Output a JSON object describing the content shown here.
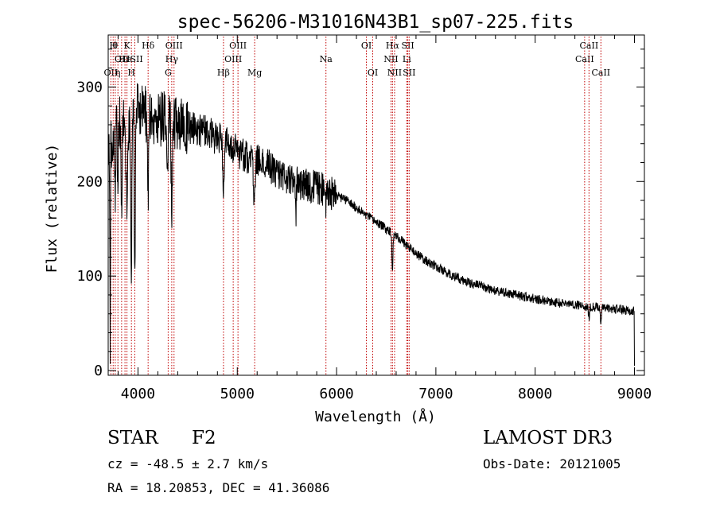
{
  "chart_data": {
    "type": "line",
    "title": "spec-56206-M31016N43B1_sp07-225.fits",
    "xlabel": "Wavelength (Å)",
    "ylabel": "Flux (relative)",
    "xlim": [
      3700,
      9100
    ],
    "ylim": [
      -5,
      355
    ],
    "x_ticks": [
      4000,
      5000,
      6000,
      7000,
      8000,
      9000
    ],
    "y_ticks": [
      0,
      100,
      200,
      300
    ],
    "grid": false,
    "continuum": {
      "x": [
        3700,
        3750,
        3800,
        3850,
        3900,
        3950,
        4000,
        4050,
        4100,
        4150,
        4200,
        4300,
        4400,
        4500,
        4600,
        4700,
        4800,
        4900,
        5000,
        5100,
        5200,
        5300,
        5400,
        5500,
        5600,
        5700,
        5800,
        5900,
        6000,
        6100,
        6200,
        6300,
        6400,
        6500,
        6600,
        6700,
        6800,
        6900,
        7000,
        7100,
        7200,
        7300,
        7400,
        7500,
        7600,
        7700,
        7800,
        7900,
        8000,
        8100,
        8200,
        8300,
        8400,
        8500,
        8600,
        8700,
        8800,
        8900,
        9000
      ],
      "y": [
        230,
        250,
        262,
        262,
        248,
        268,
        280,
        278,
        270,
        262,
        265,
        268,
        262,
        258,
        254,
        252,
        245,
        242,
        232,
        226,
        222,
        218,
        210,
        205,
        200,
        196,
        194,
        190,
        185,
        180,
        172,
        164,
        157,
        150,
        143,
        133,
        124,
        116,
        110,
        104,
        99,
        94,
        91,
        88,
        84,
        82,
        80,
        78,
        76,
        74,
        72,
        71,
        70,
        68,
        67,
        66,
        65,
        64,
        63
      ]
    },
    "absorption_features": [
      {
        "x": 3720,
        "depth": 230,
        "width": 4
      },
      {
        "x": 3770,
        "depth": 60,
        "width": 6
      },
      {
        "x": 3797,
        "depth": 70,
        "width": 6
      },
      {
        "x": 3835,
        "depth": 80,
        "width": 8
      },
      {
        "x": 3889,
        "depth": 110,
        "width": 9
      },
      {
        "x": 3933,
        "depth": 170,
        "width": 7
      },
      {
        "x": 3968,
        "depth": 190,
        "width": 8
      },
      {
        "x": 4101,
        "depth": 90,
        "width": 9
      },
      {
        "x": 4300,
        "depth": 60,
        "width": 9
      },
      {
        "x": 4340,
        "depth": 90,
        "width": 9
      },
      {
        "x": 4861,
        "depth": 55,
        "width": 12
      },
      {
        "x": 5172,
        "depth": 40,
        "width": 12
      },
      {
        "x": 5590,
        "depth": 40,
        "width": 6
      },
      {
        "x": 5893,
        "depth": 12,
        "width": 10
      },
      {
        "x": 6563,
        "depth": 40,
        "width": 7
      },
      {
        "x": 8542,
        "depth": 12,
        "width": 8
      },
      {
        "x": 8662,
        "depth": 14,
        "width": 8
      }
    ],
    "noise": {
      "blue_amplitude": 30,
      "green_amplitude": 18,
      "red_amplitude": 5,
      "terminal_drop_to": 5
    },
    "line_markers": [
      {
        "x": 3727,
        "label": "OII",
        "row": 3
      },
      {
        "x": 3750,
        "label": "H",
        "row": 1
      },
      {
        "x": 3771,
        "label": "θ",
        "row": 1
      },
      {
        "x": 3798,
        "label": "η",
        "row": 3
      },
      {
        "x": 3835,
        "label": "OII",
        "row": 2
      },
      {
        "x": 3869,
        "label": "He",
        "row": 2
      },
      {
        "x": 3889,
        "label": "K",
        "row": 1
      },
      {
        "x": 3934,
        "label": "H",
        "row": 3
      },
      {
        "x": 3968,
        "label": "ISII",
        "row": 2
      },
      {
        "x": 4102,
        "label": "Hδ",
        "row": 1
      },
      {
        "x": 4304,
        "label": "G",
        "row": 3
      },
      {
        "x": 4340,
        "label": "Hγ",
        "row": 2
      },
      {
        "x": 4363,
        "label": "OIII",
        "row": 1
      },
      {
        "x": 4861,
        "label": "Hβ",
        "row": 3
      },
      {
        "x": 4959,
        "label": "OIII",
        "row": 2
      },
      {
        "x": 5007,
        "label": "OIII",
        "row": 1
      },
      {
        "x": 5175,
        "label": "Mg",
        "row": 3
      },
      {
        "x": 5893,
        "label": "Na",
        "row": 2
      },
      {
        "x": 6300,
        "label": "OI",
        "row": 1
      },
      {
        "x": 6364,
        "label": "OI",
        "row": 3
      },
      {
        "x": 6548,
        "label": "NII",
        "row": 2
      },
      {
        "x": 6563,
        "label": "Hα",
        "row": 1
      },
      {
        "x": 6584,
        "label": "NII",
        "row": 3
      },
      {
        "x": 6707,
        "label": "Li",
        "row": 2
      },
      {
        "x": 6717,
        "label": "SII",
        "row": 1
      },
      {
        "x": 6731,
        "label": "SII",
        "row": 3
      },
      {
        "x": 8498,
        "label": "CaII",
        "row": 2
      },
      {
        "x": 8542,
        "label": "CaII",
        "row": 1
      },
      {
        "x": 8662,
        "label": "CaII",
        "row": 3
      }
    ]
  },
  "info": {
    "class_label": "STAR",
    "subclass": "F2",
    "survey": "LAMOST DR3",
    "redshift": "cz = -48.5 ± 2.7 km/s",
    "obs_date": "Obs-Date: 20121005",
    "coords": "RA =  18.20853, DEC =  41.36086"
  }
}
